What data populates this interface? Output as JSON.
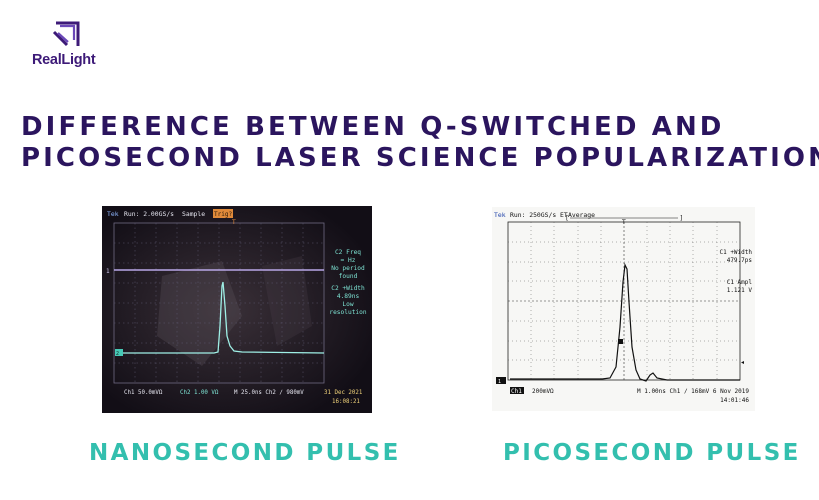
{
  "brand": {
    "name": "RealLight",
    "color": "#3d1a78",
    "icon": "reallight-logo-icon"
  },
  "title": {
    "line1": "DIFFERENCE BETWEEN Q-SWITCHED AND",
    "line2": "PICOSECOND LASER SCIENCE POPULARIZATION",
    "color": "#2b155e"
  },
  "left_scope": {
    "header_brand": "Tek",
    "header_run": "Run: 2.00GS/s",
    "header_mode": "Sample",
    "header_trig": "Trig?",
    "meas1": [
      "C2 Freq",
      "= Hz",
      "No period",
      "found"
    ],
    "meas2": [
      "C2 +Width",
      "4.89ns",
      "Low",
      "resolution"
    ],
    "footer": {
      "ch1": "Ch1  50.0mVΩ",
      "ch2": "Ch2  1.00 VΩ",
      "time": "M 25.0ns  Ch2 ∕  980mV",
      "date": "31 Dec 2021",
      "clock": "16:08:21"
    }
  },
  "right_scope": {
    "header_brand": "Tek",
    "header_run": "Run: 250GS/s ET",
    "header_mode": "Average",
    "meas1": [
      "C1 +Width",
      "479.7ps"
    ],
    "meas2": [
      "C1 Ampl",
      "1.121 V"
    ],
    "footer": {
      "ch1": "Ch1",
      "volts": "200mVΩ",
      "time": "M 1.00ns  Ch1 ∕   168mV",
      "date": "6 Nov 2019",
      "clock": "14:01:46"
    }
  },
  "captions": {
    "left": "NANOSECOND PULSE",
    "right": "PICOSECOND PULSE",
    "color": "#33bfae"
  }
}
